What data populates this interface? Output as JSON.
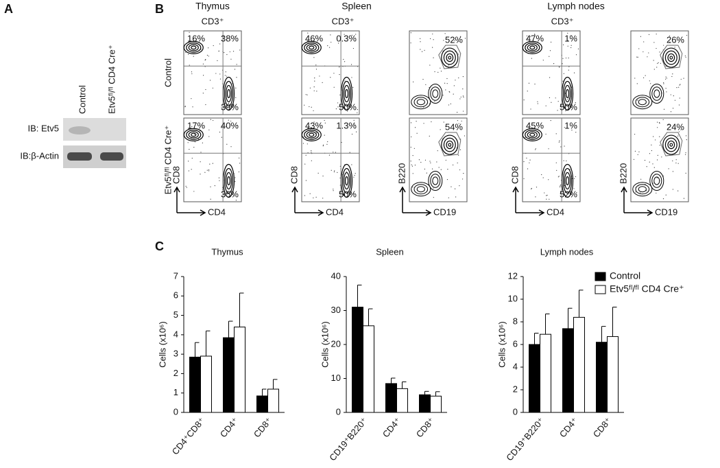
{
  "panel_a": {
    "label": "A",
    "lanes": [
      "Control",
      "Etv5ᶠˡ/ᶠˡ CD4 Cre⁺"
    ],
    "blots": [
      "IB: Etv5",
      "IB:β-Actin"
    ]
  },
  "panel_b": {
    "label": "B",
    "tissues": [
      {
        "title": "Thymus",
        "gate": "CD3⁺"
      },
      {
        "title": "Spleen",
        "gate": "CD3⁺"
      },
      {
        "title": "Lymph nodes",
        "gate": "CD3⁺"
      }
    ],
    "row_labels": [
      "Control",
      "Etv5ᶠˡ/ᶠˡ CD4 Cre⁺"
    ],
    "axes": [
      {
        "y": "CD8",
        "x": "CD4"
      },
      {
        "y": "CD8",
        "x": "CD4"
      },
      {
        "y": "B220",
        "x": "CD19"
      },
      {
        "y": "CD8",
        "x": "CD4"
      },
      {
        "y": "B220",
        "x": "CD19"
      }
    ],
    "plots": [
      [
        {
          "tl": "16%",
          "tr": "38%",
          "br": "39%"
        },
        {
          "tl": "46%",
          "tr": "0.3%",
          "br": "50%"
        },
        {
          "gate": "52%"
        },
        {
          "tl": "47%",
          "tr": "1%",
          "br": "50%"
        },
        {
          "gate": "26%"
        }
      ],
      [
        {
          "tl": "17%",
          "tr": "40%",
          "br": "35%"
        },
        {
          "tl": "43%",
          "tr": "1.3%",
          "br": "50%"
        },
        {
          "gate": "54%"
        },
        {
          "tl": "45%",
          "tr": "1%",
          "br": "52%"
        },
        {
          "gate": "24%"
        }
      ]
    ]
  },
  "panel_c": {
    "label": "C"
  },
  "chart_data": [
    {
      "type": "bar",
      "title": "Thymus",
      "y_label": "Cells (x10⁶)",
      "categories": [
        "CD4⁺CD8⁺",
        "CD4⁺",
        "CD8⁺"
      ],
      "series": [
        {
          "name": "Control",
          "color": "#000000",
          "values": [
            2.85,
            3.85,
            0.85
          ],
          "errors": [
            0.75,
            0.85,
            0.35
          ]
        },
        {
          "name": "Etv5ᶠˡ/ᶠˡ CD4 Cre⁺",
          "color": "#ffffff",
          "values": [
            2.9,
            4.4,
            1.2
          ],
          "errors": [
            1.3,
            1.75,
            0.5
          ]
        }
      ],
      "ylim": [
        0,
        7
      ],
      "yticks": [
        0,
        1,
        2,
        3,
        4,
        5,
        6,
        7
      ]
    },
    {
      "type": "bar",
      "title": "Spleen",
      "y_label": "Cells (x10⁶)",
      "categories": [
        "CD19⁺B220⁺",
        "CD4⁺",
        "CD8⁺"
      ],
      "series": [
        {
          "name": "Control",
          "color": "#000000",
          "values": [
            31,
            8.5,
            5.2
          ],
          "errors": [
            6.5,
            1.6,
            1
          ]
        },
        {
          "name": "Etv5ᶠˡ/ᶠˡ CD4 Cre⁺",
          "color": "#ffffff",
          "values": [
            25.5,
            7,
            4.8
          ],
          "errors": [
            5,
            2,
            1.3
          ]
        }
      ],
      "ylim": [
        0,
        40
      ],
      "yticks": [
        0,
        10,
        20,
        30,
        40
      ]
    },
    {
      "type": "bar",
      "title": "Lymph nodes",
      "y_label": "Cells (x10⁶)",
      "categories": [
        "CD19⁺B220⁺",
        "CD4⁺",
        "CD8⁺"
      ],
      "series": [
        {
          "name": "Control",
          "color": "#000000",
          "values": [
            6,
            7.4,
            6.2
          ],
          "errors": [
            1,
            1.8,
            1.4
          ]
        },
        {
          "name": "Etv5ᶠˡ/ᶠˡ CD4 Cre⁺",
          "color": "#ffffff",
          "values": [
            6.9,
            8.4,
            6.7
          ],
          "errors": [
            1.8,
            2.4,
            2.6
          ]
        }
      ],
      "ylim": [
        0,
        12
      ],
      "yticks": [
        0,
        2,
        4,
        6,
        8,
        10,
        12
      ],
      "legend": "upper right"
    }
  ]
}
